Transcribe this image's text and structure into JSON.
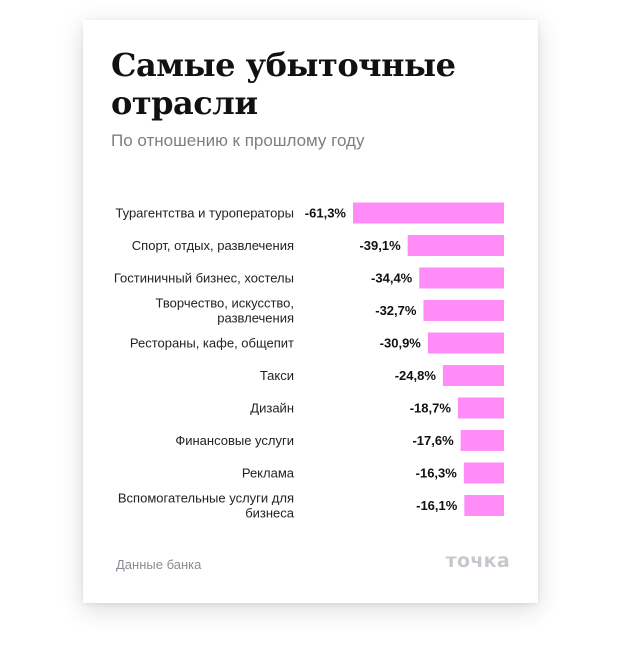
{
  "header": {
    "title": "Самые убыточные отрасли",
    "subtitle": "По отношению к прошлому году"
  },
  "footer": {
    "source": "Данные банка",
    "logo": "точка"
  },
  "colors": {
    "bar": "#ff8cf7",
    "text": "#111111"
  },
  "chart_data": {
    "type": "bar",
    "orientation": "horizontal",
    "title": "Самые убыточные отрасли",
    "subtitle": "По отношению к прошлому году",
    "unit": "%",
    "categories": [
      "Турагентства и туроператоры",
      "Спорт, отдых, развлечения",
      "Гостиничный бизнес, хостелы",
      "Творчество, искусство, развлечения",
      "Рестораны, кафе, общепит",
      "Такси",
      "Дизайн",
      "Финансовые услуги",
      "Реклама",
      "Вспомогательные услуги для бизнеса"
    ],
    "values": [
      -61.3,
      -39.1,
      -34.4,
      -32.7,
      -30.9,
      -24.8,
      -18.7,
      -17.6,
      -16.3,
      -16.1
    ],
    "value_labels": [
      "-61,3%",
      "-39,1%",
      "-34,4%",
      "-32,7%",
      "-30,9%",
      "-24,8%",
      "-18,7%",
      "-17,6%",
      "-16,3%",
      "-16,1%"
    ],
    "grid": false,
    "legend": "none"
  }
}
